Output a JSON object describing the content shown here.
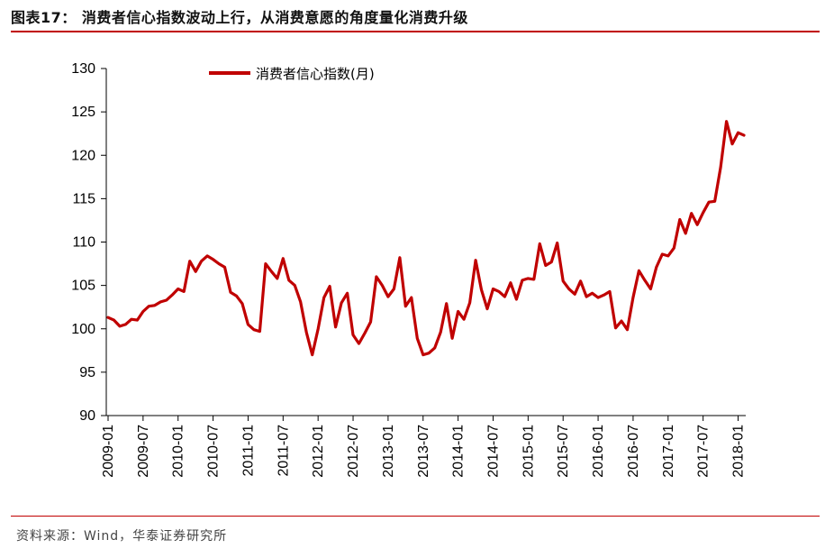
{
  "header": {
    "title": "图表17：  消费者信心指数波动上行，从消费意愿的角度量化消费升级"
  },
  "footer": {
    "source": "资料来源：Wind，华泰证券研究所"
  },
  "colors": {
    "accent": "#c00000",
    "series": "#c00000"
  },
  "chart_data": {
    "type": "line",
    "ylim": [
      90,
      130
    ],
    "yticks": [
      "90",
      "95",
      "100",
      "105",
      "110",
      "115",
      "120",
      "125",
      "130"
    ],
    "xticks": [
      "2009-01",
      "2009-07",
      "2010-01",
      "2010-07",
      "2011-01",
      "2011-07",
      "2012-01",
      "2012-07",
      "2013-01",
      "2013-07",
      "2014-01",
      "2014-07",
      "2015-01",
      "2015-07",
      "2016-01",
      "2016-07",
      "2017-01",
      "2017-07",
      "2018-01"
    ],
    "grid": false,
    "legend_position": "top-left",
    "series": [
      {
        "name": "消费者信心指数(月)",
        "start": "2009-01",
        "frequency": "monthly",
        "values": [
          101.3,
          101.0,
          100.3,
          100.5,
          101.1,
          101.0,
          102.0,
          102.6,
          102.7,
          103.1,
          103.3,
          103.9,
          104.6,
          104.3,
          107.8,
          106.6,
          107.8,
          108.4,
          108.0,
          107.5,
          107.1,
          104.2,
          103.8,
          102.9,
          100.5,
          99.9,
          99.7,
          107.5,
          106.6,
          105.8,
          108.1,
          105.6,
          105.0,
          103.1,
          99.6,
          97.0,
          100.0,
          103.6,
          104.9,
          100.2,
          103.0,
          104.1,
          99.3,
          98.3,
          99.5,
          100.8,
          106.0,
          105.0,
          103.7,
          104.6,
          108.2,
          102.6,
          103.6,
          98.9,
          97.0,
          97.2,
          97.8,
          99.6,
          102.9,
          98.9,
          102.0,
          101.1,
          103.0,
          107.9,
          104.5,
          102.3,
          104.6,
          104.3,
          103.7,
          105.3,
          103.4,
          105.6,
          105.8,
          105.7,
          109.8,
          107.3,
          107.7,
          109.9,
          105.5,
          104.6,
          104.0,
          105.5,
          103.7,
          104.1,
          103.6,
          103.9,
          104.3,
          100.1,
          100.9,
          99.9,
          103.6,
          106.7,
          105.6,
          104.6,
          107.1,
          108.6,
          108.4,
          109.3,
          112.6,
          111.0,
          113.3,
          112.0,
          113.4,
          114.6,
          114.7,
          118.6,
          123.9,
          121.3,
          122.6,
          122.3
        ]
      }
    ]
  }
}
